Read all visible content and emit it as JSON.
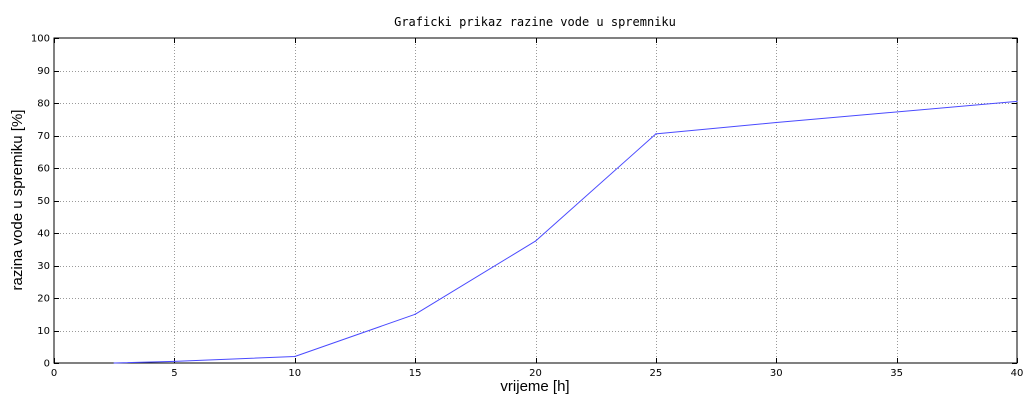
{
  "chart_data": {
    "type": "line",
    "title": "Graficki prikaz razine vode u spremniku",
    "xlabel": "vrijeme [h]",
    "ylabel": "razina vode u spremiku [%]",
    "xlim": [
      0,
      40
    ],
    "ylim": [
      0,
      100
    ],
    "xticks": [
      0,
      5,
      10,
      15,
      20,
      25,
      30,
      35,
      40
    ],
    "yticks": [
      0,
      10,
      20,
      30,
      40,
      50,
      60,
      70,
      80,
      90,
      100
    ],
    "grid": true,
    "series": [
      {
        "color": "#4a4aff",
        "x": [
          2.5,
          5,
          10,
          15,
          20,
          25,
          30,
          40
        ],
        "y": [
          0,
          0.5,
          2,
          15,
          37.5,
          70.5,
          74,
          80.5
        ]
      }
    ]
  }
}
